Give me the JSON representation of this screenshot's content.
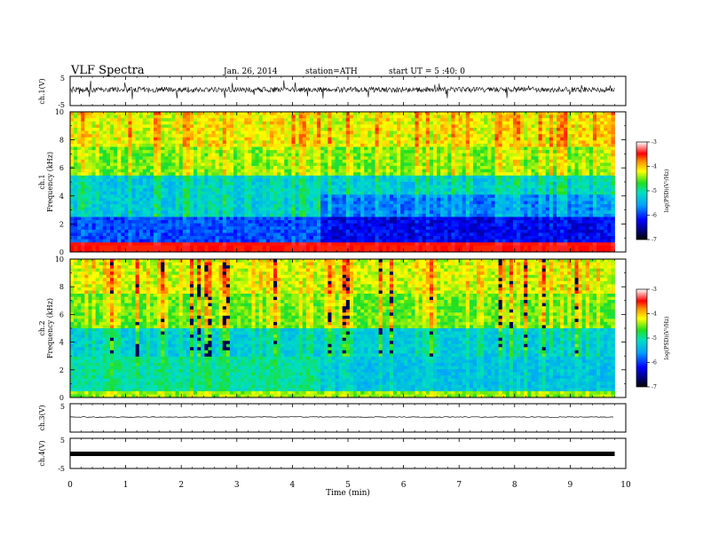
{
  "header": {
    "title": "VLF  Spectra",
    "date": "Jan. 26, 2014",
    "station": "station=ATH",
    "start": "start  UT =   5 :40: 0"
  },
  "chart_data": [
    {
      "type": "line",
      "panel": "ch1-waveform",
      "ylabel": "ch.1(V)",
      "ylim": [
        -5,
        5
      ],
      "y_ticks": [
        "5",
        "-5"
      ],
      "description_level": "dense noisy waveform centred near 0 V"
    },
    {
      "type": "heatmap",
      "panel": "ch1-spectrogram",
      "ylabel": "ch.1\nFrequency  (kHz)",
      "ylim": [
        0,
        10
      ],
      "y_ticks": [
        "0",
        "2",
        "4",
        "6",
        "8",
        "10"
      ],
      "colorbar": {
        "label": "log(PSD)(V²/Hz)",
        "range": [
          -7,
          -3
        ],
        "ticks": [
          "-3",
          "-4",
          "-5",
          "-6",
          "-7"
        ]
      },
      "data_end_min": 9.8
    },
    {
      "type": "heatmap",
      "panel": "ch2-spectrogram",
      "ylabel": "ch.2\nFrequency  (kHz)",
      "ylim": [
        0,
        10
      ],
      "y_ticks": [
        "0",
        "2",
        "4",
        "6",
        "8",
        "10"
      ],
      "colorbar": {
        "label": "log(PSD)(V²/Hz)",
        "range": [
          -7,
          -3
        ],
        "ticks": [
          "-3",
          "-4",
          "-5",
          "-6",
          "-7"
        ]
      },
      "data_end_min": 9.8
    },
    {
      "type": "line",
      "panel": "ch3-waveform",
      "ylabel": "ch.3(V)",
      "ylim": [
        -5,
        5
      ],
      "y_ticks": [
        "5"
      ],
      "level_v": 0
    },
    {
      "type": "line",
      "panel": "ch4-waveform",
      "ylabel": "ch.4(V)",
      "ylim": [
        -5,
        5
      ],
      "y_ticks": [
        "5",
        "-5"
      ],
      "level_v": 0
    }
  ],
  "xaxis": {
    "label": "Time  (min)",
    "range": [
      0,
      10
    ],
    "ticks": [
      "0",
      "1",
      "2",
      "3",
      "4",
      "5",
      "6",
      "7",
      "8",
      "9",
      "10"
    ]
  }
}
